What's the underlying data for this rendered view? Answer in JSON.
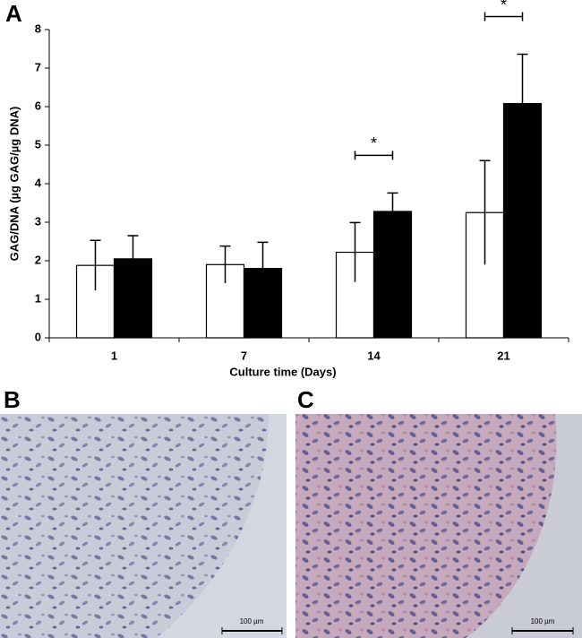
{
  "chart_data": {
    "type": "bar",
    "panel_label": "A",
    "x_label": "Culture time (Days)",
    "y_label": "GAG/DNA (µg GAG/µg DNA)",
    "categories": [
      "1",
      "7",
      "14",
      "21"
    ],
    "series": [
      {
        "color": "#ffffff",
        "values": [
          1.88,
          1.9,
          2.22,
          3.25
        ],
        "errors": [
          0.65,
          0.48,
          0.77,
          1.35
        ]
      },
      {
        "color": "#000000",
        "values": [
          2.05,
          1.8,
          3.28,
          6.08
        ],
        "errors": [
          0.6,
          0.68,
          0.48,
          1.28
        ]
      }
    ],
    "ylim": [
      0,
      8
    ],
    "yticks": [
      0,
      1,
      2,
      3,
      4,
      5,
      6,
      7,
      8
    ],
    "significance": [
      {
        "category": "14",
        "label": "*"
      },
      {
        "category": "21",
        "label": "*"
      }
    ]
  },
  "micrographs": [
    {
      "label": "B",
      "scale_bar": "100 µm"
    },
    {
      "label": "C",
      "scale_bar": "100 µm"
    }
  ]
}
